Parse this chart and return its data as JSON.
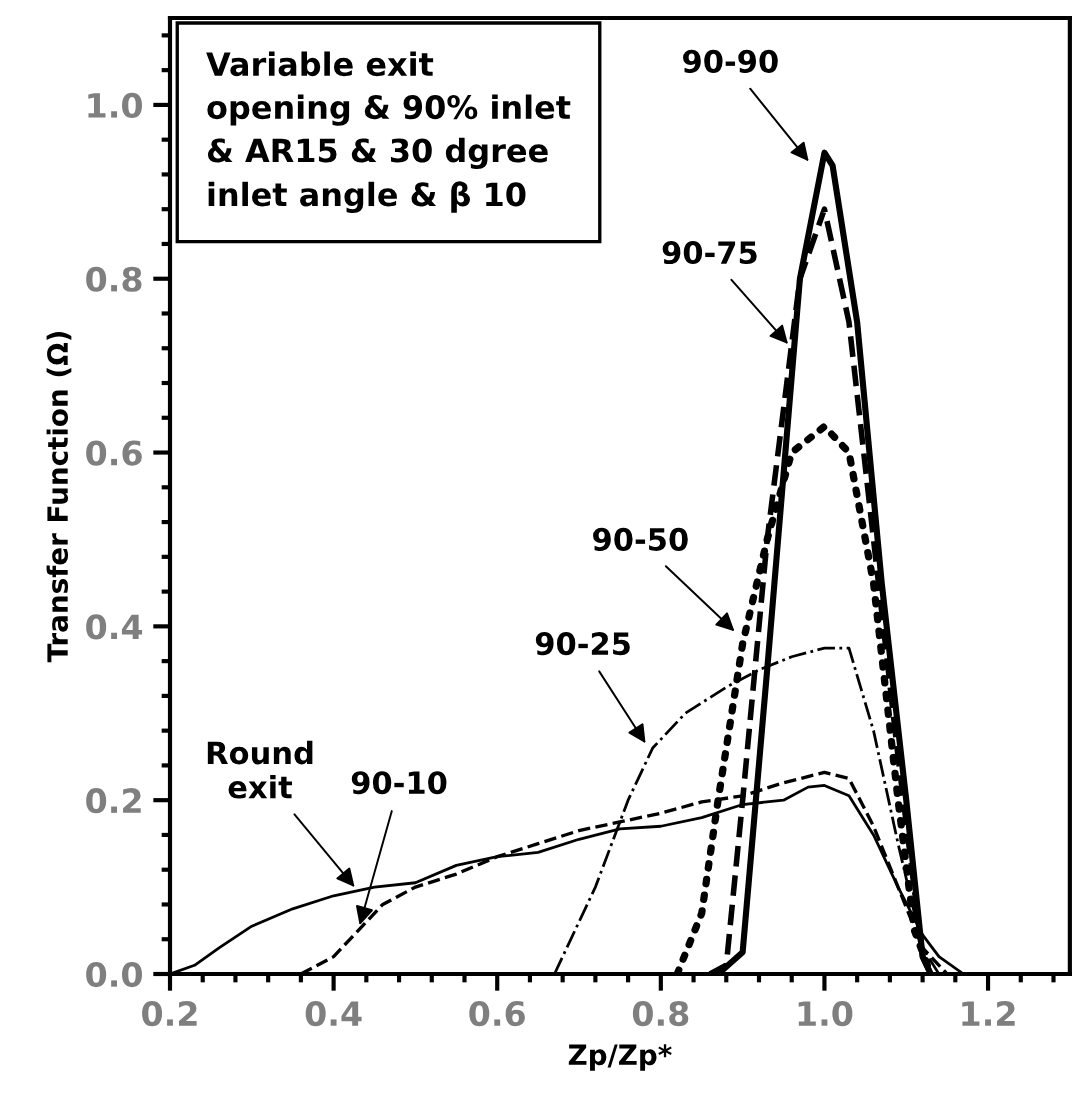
{
  "chart_data": {
    "type": "line",
    "xlabel": "Zp/Zp*",
    "ylabel": "Transfer Function (Ω)",
    "xlim": [
      0.2,
      1.3
    ],
    "ylim": [
      0,
      1.1
    ],
    "xticks": [
      0.2,
      0.4,
      0.6,
      0.8,
      {
        "value": 1.0,
        "label": "1.0"
      },
      1.2
    ],
    "yticks": [
      {
        "value": 0,
        "label": "0.0"
      },
      0.2,
      0.4,
      0.6,
      0.8,
      {
        "value": 1.0,
        "label": "1.0"
      }
    ],
    "grid": false,
    "marker": "none",
    "series": [
      {
        "color": "#000000",
        "line_style": "solid",
        "x": [
          0.2,
          0.23,
          0.26,
          0.3,
          0.35,
          0.4,
          0.45,
          0.5,
          0.55,
          0.6,
          0.65,
          0.7,
          0.75,
          0.8,
          0.85,
          0.9,
          0.95,
          0.98,
          1.0,
          1.03,
          1.06,
          1.09,
          1.12,
          1.14,
          1.17
        ],
        "values": [
          0,
          0.01,
          0.03,
          0.055,
          0.075,
          0.09,
          0.1,
          0.105,
          0.125,
          0.135,
          0.14,
          0.155,
          0.167,
          0.17,
          0.18,
          0.195,
          0.2,
          0.215,
          0.217,
          0.205,
          0.16,
          0.1,
          0.045,
          0.02,
          0
        ]
      },
      {
        "color": "#000000",
        "line_style": "dashed",
        "x": [
          0.36,
          0.4,
          0.43,
          0.46,
          0.5,
          0.55,
          0.6,
          0.65,
          0.7,
          0.75,
          0.8,
          0.85,
          0.9,
          0.95,
          1.0,
          1.03,
          1.06,
          1.09,
          1.12,
          1.15
        ],
        "values": [
          0,
          0.02,
          0.05,
          0.08,
          0.1,
          0.115,
          0.135,
          0.15,
          0.165,
          0.175,
          0.185,
          0.198,
          0.205,
          0.22,
          0.232,
          0.225,
          0.17,
          0.1,
          0.03,
          0
        ]
      },
      {
        "color": "#000000",
        "line_style": "dashdot",
        "x": [
          0.67,
          0.72,
          0.76,
          0.79,
          0.83,
          0.88,
          0.92,
          0.96,
          1.0,
          1.03,
          1.06,
          1.09,
          1.12,
          1.14
        ],
        "values": [
          0,
          0.1,
          0.2,
          0.26,
          0.3,
          0.33,
          0.35,
          0.365,
          0.375,
          0.375,
          0.28,
          0.15,
          0.03,
          0
        ]
      },
      {
        "color": "#000000",
        "line_style": "dotted",
        "x": [
          0.82,
          0.85,
          0.87,
          0.9,
          0.93,
          0.96,
          1.0,
          1.03,
          1.06,
          1.09,
          1.11,
          1.13
        ],
        "values": [
          0,
          0.07,
          0.2,
          0.38,
          0.5,
          0.6,
          0.63,
          0.6,
          0.45,
          0.2,
          0.05,
          0
        ]
      },
      {
        "color": "#000000",
        "line_style": "dashed",
        "x": [
          0.86,
          0.88,
          0.9,
          0.93,
          0.97,
          1.0,
          1.03,
          1.06,
          1.09,
          1.12,
          1.13
        ],
        "values": [
          0,
          0.01,
          0.2,
          0.5,
          0.8,
          0.88,
          0.75,
          0.5,
          0.25,
          0.02,
          0
        ]
      },
      {
        "color": "#000000",
        "line_style": "solid",
        "x": [
          0.87,
          0.9,
          0.93,
          0.97,
          1.0,
          1.01,
          1.04,
          1.07,
          1.1,
          1.12,
          1.13
        ],
        "values": [
          0,
          0.025,
          0.35,
          0.8,
          0.945,
          0.93,
          0.75,
          0.45,
          0.2,
          0.02,
          0
        ]
      }
    ],
    "annotations": [
      "Variable exit\nopening & 90% inlet\n& AR15 & 30 dgree\ninlet angle & β 10",
      {
        "text": "Round\nexit",
        "x": 0.43,
        "y": 0.095
      },
      {
        "text": "90-10",
        "x": 0.43,
        "y": 0.05
      },
      {
        "text": "90-25",
        "x": 0.785,
        "y": 0.26
      },
      {
        "text": "90-50",
        "x": 0.895,
        "y": 0.39
      },
      {
        "text": "90-75",
        "x": 0.96,
        "y": 0.72
      },
      {
        "text": "90-90",
        "x": 0.985,
        "y": 0.93
      }
    ]
  }
}
